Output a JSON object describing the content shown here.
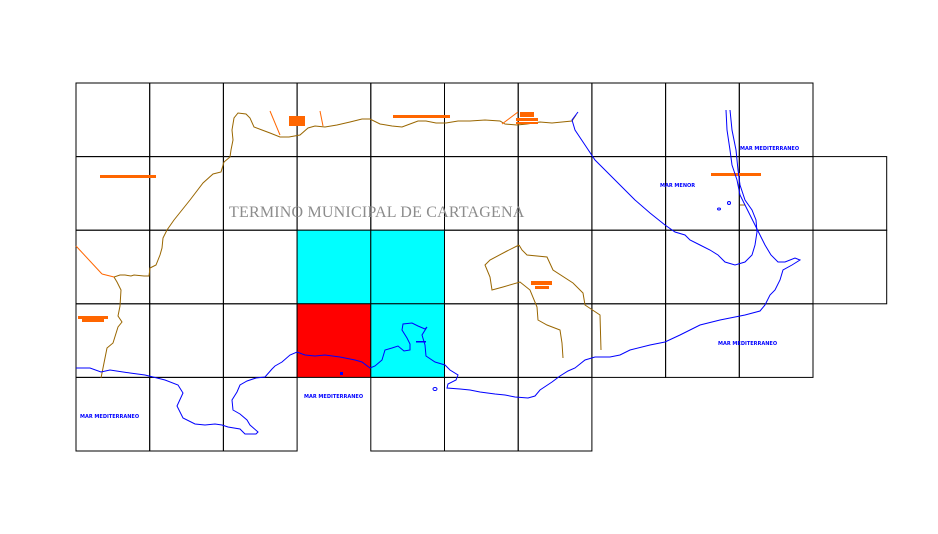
{
  "map": {
    "title": "TERMINO MUNICIPAL DE CARTAGENA",
    "sea_labels": [
      "MAR MEDITERRANEO",
      "MAR MEDITERRANEO",
      "MAR MEDITERRANEO",
      "MAR MEDITERRANEO",
      "MAR MENOR"
    ],
    "colors": {
      "grid": "#000000",
      "sheet_cyan": "#00ffff",
      "sheet_red": "#ff0000",
      "coastline": "#0000ff",
      "boundary": "#996600",
      "roads": "#ff6600",
      "title": "#8c8c8c"
    },
    "sheet_rows": [
      {
        "cols": [
          0,
          1,
          2,
          3,
          4,
          5,
          6,
          7,
          8,
          9
        ],
        "highlight": {}
      },
      {
        "cols": [
          0,
          1,
          2,
          3,
          4,
          5,
          6,
          7,
          8,
          9,
          10
        ],
        "highlight": {}
      },
      {
        "cols": [
          0,
          1,
          2,
          3,
          4,
          5,
          6,
          7,
          8,
          9,
          10
        ],
        "highlight": {
          "3": "cyan",
          "4": "cyan"
        }
      },
      {
        "cols": [
          0,
          1,
          2,
          3,
          4,
          5,
          6,
          7,
          8,
          9
        ],
        "highlight": {
          "3": "red",
          "4": "cyan"
        }
      },
      {
        "cols": [
          0,
          1,
          2,
          4,
          5,
          6
        ],
        "highlight": {}
      }
    ]
  }
}
